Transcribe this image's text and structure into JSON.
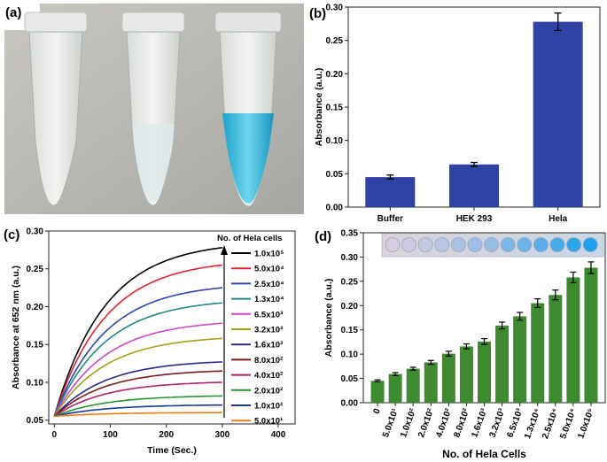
{
  "panels": {
    "a": "(a)",
    "b": "(b)",
    "c": "(c)",
    "d": "(d)"
  },
  "colors": {
    "bar_b": "#2e43a3",
    "bar_d": "#3d8a2f"
  },
  "chart_data": [
    {
      "id": "b",
      "type": "bar",
      "categories": [
        "Buffer",
        "HEK 293",
        "Hela"
      ],
      "values": [
        0.045,
        0.064,
        0.278
      ],
      "errors": [
        0.003,
        0.003,
        0.013
      ],
      "ylabel": "Absorbance (a.u.)",
      "xlabel": "",
      "ylim": [
        0,
        0.3
      ],
      "yticks": [
        "0.00",
        "0.05",
        "0.10",
        "0.15",
        "0.20",
        "0.25",
        "0.30"
      ]
    },
    {
      "id": "c",
      "type": "line",
      "xlabel": "Time (Sec.)",
      "ylabel": "Absorbance at 652 nm (a.u.)",
      "xlim": [
        -10,
        430
      ],
      "ylim": [
        0.045,
        0.3
      ],
      "xticks": [
        "0",
        "100",
        "200",
        "300",
        "400"
      ],
      "yticks": [
        "0.05",
        "0.10",
        "0.15",
        "0.20",
        "0.25",
        "0.30"
      ],
      "legend_title": "No. of Hela cells",
      "start_value": 0.055,
      "x_end": 300,
      "series": [
        {
          "name": "1.0x10⁵",
          "color": "#000000",
          "final": 0.278
        },
        {
          "name": "5.0x10⁴",
          "color": "#e0242c",
          "final": 0.255
        },
        {
          "name": "2.5x10⁴",
          "color": "#2f46b5",
          "final": 0.225
        },
        {
          "name": "1.3x10⁴",
          "color": "#1f8a88",
          "final": 0.205
        },
        {
          "name": "6.5x10³",
          "color": "#d246c8",
          "final": 0.178
        },
        {
          "name": "3.2x10³",
          "color": "#a8a019",
          "final": 0.158
        },
        {
          "name": "1.6x10³",
          "color": "#2a2a8a",
          "final": 0.127
        },
        {
          "name": "8.0x10²",
          "color": "#7a1a1a",
          "final": 0.115
        },
        {
          "name": "4.0x10²",
          "color": "#b0246c",
          "final": 0.1
        },
        {
          "name": "2.0x10²",
          "color": "#27952b",
          "final": 0.082
        },
        {
          "name": "1.0x10²",
          "color": "#1a3a9a",
          "final": 0.07
        },
        {
          "name": "5.0x10¹",
          "color": "#ef7d12",
          "final": 0.06
        }
      ]
    },
    {
      "id": "d",
      "type": "bar",
      "categories": [
        "0",
        "5.0x10¹",
        "1.0x10²",
        "2.0x10²",
        "4.0x10²",
        "8.0x10²",
        "1.6x10³",
        "3.2x10³",
        "6.5x10³",
        "1.3x10⁴",
        "2.5x10⁴",
        "5.0x10⁴",
        "1.0x10⁵"
      ],
      "values": [
        0.045,
        0.059,
        0.07,
        0.083,
        0.101,
        0.116,
        0.126,
        0.159,
        0.178,
        0.205,
        0.222,
        0.258,
        0.278
      ],
      "errors": [
        0.002,
        0.003,
        0.003,
        0.004,
        0.005,
        0.005,
        0.006,
        0.007,
        0.008,
        0.009,
        0.01,
        0.011,
        0.012
      ],
      "xlabel": "No. of Hela Cells",
      "ylabel": "Absorbance (a.u.)",
      "ylim": [
        0,
        0.35
      ],
      "yticks": [
        "0.00",
        "0.05",
        "0.10",
        "0.15",
        "0.20",
        "0.25",
        "0.30",
        "0.35"
      ]
    }
  ]
}
